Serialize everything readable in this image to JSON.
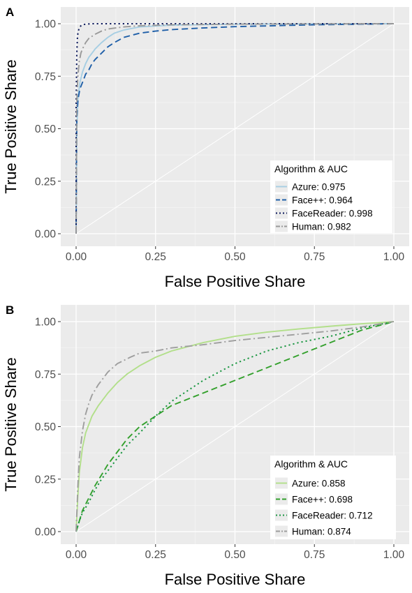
{
  "figure": {
    "title": ""
  },
  "chart_data": [
    {
      "panel": "A",
      "type": "line",
      "title": "",
      "xlabel": "False Positive Share",
      "ylabel": "True Positive Share",
      "xlim": [
        0,
        1
      ],
      "ylim": [
        0,
        1
      ],
      "xticks": [
        "0.00",
        "0.25",
        "0.50",
        "0.75",
        "1.00"
      ],
      "yticks": [
        "0.00",
        "0.25",
        "0.50",
        "0.75",
        "1.00"
      ],
      "grid": true,
      "legend": {
        "title": "Algorithm & AUC",
        "position": "bottom-right"
      },
      "diagonal": true,
      "series": [
        {
          "name": "Azure: 0.975",
          "color": "#a6cee3",
          "dash": "solid",
          "x": [
            0,
            0.002,
            0.006,
            0.012,
            0.02,
            0.03,
            0.04,
            0.05,
            0.06,
            0.07,
            0.08,
            0.1,
            0.12,
            0.15,
            0.2,
            0.3,
            0.5,
            1.0
          ],
          "y": [
            0,
            0.5,
            0.65,
            0.72,
            0.77,
            0.81,
            0.84,
            0.86,
            0.88,
            0.895,
            0.91,
            0.935,
            0.955,
            0.97,
            0.985,
            0.993,
            0.998,
            1.0
          ]
        },
        {
          "name": "Face++: 0.964",
          "color": "#1f5fa8",
          "dash": "dashed",
          "x": [
            0,
            0.002,
            0.006,
            0.012,
            0.02,
            0.03,
            0.04,
            0.05,
            0.06,
            0.08,
            0.1,
            0.12,
            0.15,
            0.2,
            0.25,
            0.3,
            0.4,
            0.5,
            0.75,
            1.0
          ],
          "y": [
            0,
            0.55,
            0.64,
            0.69,
            0.72,
            0.76,
            0.78,
            0.81,
            0.83,
            0.86,
            0.89,
            0.91,
            0.935,
            0.955,
            0.965,
            0.972,
            0.98,
            0.986,
            0.995,
            1.0
          ]
        },
        {
          "name": "FaceReader: 0.998",
          "color": "#0d1a5c",
          "dash": "dotted",
          "x": [
            0,
            0.0,
            0.002,
            0.004,
            0.006,
            0.01,
            0.015,
            0.02,
            0.03,
            0.05,
            0.1,
            1.0
          ],
          "y": [
            0,
            0.6,
            0.85,
            0.93,
            0.96,
            0.98,
            0.99,
            0.995,
            0.998,
            1.0,
            1.0,
            1.0
          ]
        },
        {
          "name": "Human: 0.982",
          "color": "#999999",
          "dash": "dashdot",
          "x": [
            0,
            0.002,
            0.005,
            0.01,
            0.015,
            0.02,
            0.03,
            0.04,
            0.06,
            0.08,
            0.1,
            0.15,
            0.2,
            0.3,
            0.5,
            1.0
          ],
          "y": [
            0,
            0.62,
            0.74,
            0.82,
            0.86,
            0.88,
            0.91,
            0.93,
            0.95,
            0.965,
            0.975,
            0.985,
            0.99,
            0.995,
            0.998,
            1.0
          ]
        }
      ]
    },
    {
      "panel": "B",
      "type": "line",
      "title": "",
      "xlabel": "False Positive Share",
      "ylabel": "True Positive Share",
      "xlim": [
        0,
        1
      ],
      "ylim": [
        0,
        1
      ],
      "xticks": [
        "0.00",
        "0.25",
        "0.50",
        "0.75",
        "1.00"
      ],
      "yticks": [
        "0.00",
        "0.25",
        "0.50",
        "0.75",
        "1.00"
      ],
      "grid": true,
      "legend": {
        "title": "Algorithm & AUC",
        "position": "bottom-right"
      },
      "diagonal": true,
      "series": [
        {
          "name": "Azure: 0.858",
          "color": "#b2df8a",
          "dash": "solid",
          "x": [
            0,
            0.005,
            0.01,
            0.02,
            0.03,
            0.05,
            0.07,
            0.1,
            0.13,
            0.16,
            0.2,
            0.25,
            0.3,
            0.4,
            0.5,
            0.6,
            0.7,
            0.8,
            0.9,
            1.0
          ],
          "y": [
            0,
            0.16,
            0.28,
            0.4,
            0.47,
            0.55,
            0.6,
            0.66,
            0.71,
            0.75,
            0.79,
            0.83,
            0.86,
            0.9,
            0.93,
            0.95,
            0.965,
            0.978,
            0.99,
            1.0
          ]
        },
        {
          "name": "Face++: 0.698",
          "color": "#33a02c",
          "dash": "dashed",
          "x": [
            0,
            0.01,
            0.02,
            0.04,
            0.06,
            0.08,
            0.1,
            0.13,
            0.16,
            0.2,
            0.25,
            0.3,
            0.35,
            0.4,
            0.45,
            0.5,
            0.55,
            0.6,
            0.65,
            0.7,
            0.75,
            0.8,
            0.85,
            0.9,
            0.95,
            1.0
          ],
          "y": [
            0,
            0.05,
            0.1,
            0.16,
            0.22,
            0.27,
            0.32,
            0.38,
            0.44,
            0.5,
            0.55,
            0.6,
            0.63,
            0.66,
            0.69,
            0.72,
            0.75,
            0.78,
            0.81,
            0.84,
            0.87,
            0.9,
            0.93,
            0.96,
            0.98,
            1.0
          ]
        },
        {
          "name": "FaceReader: 0.712",
          "color": "#1a9641",
          "dash": "dotted",
          "x": [
            0,
            0.01,
            0.02,
            0.04,
            0.06,
            0.08,
            0.1,
            0.13,
            0.16,
            0.2,
            0.25,
            0.3,
            0.35,
            0.4,
            0.45,
            0.5,
            0.55,
            0.6,
            0.7,
            0.8,
            0.9,
            1.0
          ],
          "y": [
            0,
            0.05,
            0.09,
            0.14,
            0.2,
            0.25,
            0.29,
            0.35,
            0.41,
            0.47,
            0.55,
            0.62,
            0.67,
            0.72,
            0.76,
            0.8,
            0.83,
            0.86,
            0.9,
            0.93,
            0.97,
            1.0
          ]
        },
        {
          "name": "Human: 0.874",
          "color": "#9e9e9e",
          "dash": "dashdot",
          "x": [
            0,
            0.005,
            0.01,
            0.02,
            0.03,
            0.04,
            0.05,
            0.07,
            0.1,
            0.13,
            0.17,
            0.2,
            0.25,
            0.3,
            0.4,
            0.5,
            0.6,
            0.7,
            0.8,
            0.9,
            1.0
          ],
          "y": [
            0,
            0.2,
            0.35,
            0.48,
            0.56,
            0.61,
            0.65,
            0.7,
            0.76,
            0.8,
            0.83,
            0.85,
            0.86,
            0.875,
            0.89,
            0.91,
            0.925,
            0.94,
            0.955,
            0.975,
            1.0
          ]
        }
      ]
    }
  ]
}
